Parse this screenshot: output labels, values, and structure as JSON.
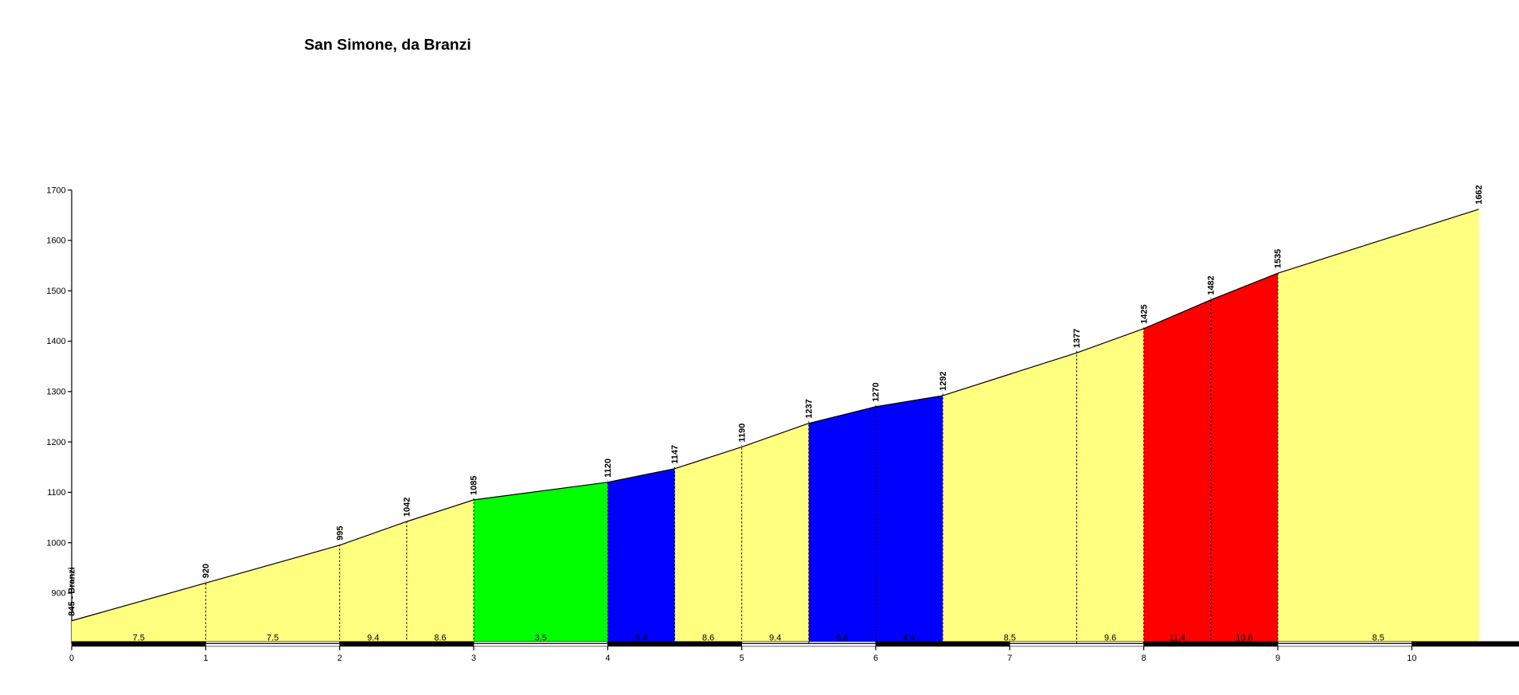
{
  "chart_data": {
    "type": "profile",
    "title": "San Simone, da Branzi",
    "x": [
      0,
      1,
      2,
      2.5,
      3,
      4,
      4.5,
      5,
      5.5,
      6,
      6.5,
      7.5,
      8,
      8.5,
      9,
      10.5
    ],
    "values": [
      845,
      920,
      995,
      1042,
      1085,
      1120,
      1147,
      1190,
      1237,
      1270,
      1292,
      1377,
      1425,
      1482,
      1535,
      1662
    ],
    "value_labels": [
      "845 - Branzi",
      "920",
      "995",
      "1042",
      "1085",
      "1120",
      "1147",
      "1190",
      "1237",
      "1270",
      "1292",
      "1377",
      "1425",
      "1482",
      "1535",
      "1662"
    ],
    "gradients": [
      7.5,
      7.5,
      9.4,
      8.6,
      3.5,
      5.4,
      8.6,
      9.4,
      6.6,
      4.4,
      8.5,
      9.6,
      11.4,
      10.6,
      8.5
    ],
    "segment_colors": [
      "#ffff80",
      "#ffff80",
      "#ffff80",
      "#ffff80",
      "#00ff00",
      "#0000ff",
      "#ffff80",
      "#ffff80",
      "#0000ff",
      "#0000ff",
      "#ffff80",
      "#ffff80",
      "#ff0000",
      "#ff0000",
      "#ffff80"
    ],
    "xlim": [
      0,
      10.8
    ],
    "xticks": [
      0,
      1,
      2,
      3,
      4,
      5,
      6,
      7,
      8,
      9,
      10
    ],
    "ylim": [
      800,
      1700
    ],
    "yticks": [
      900,
      1000,
      1100,
      1200,
      1300,
      1400,
      1500,
      1600,
      1700
    ]
  }
}
